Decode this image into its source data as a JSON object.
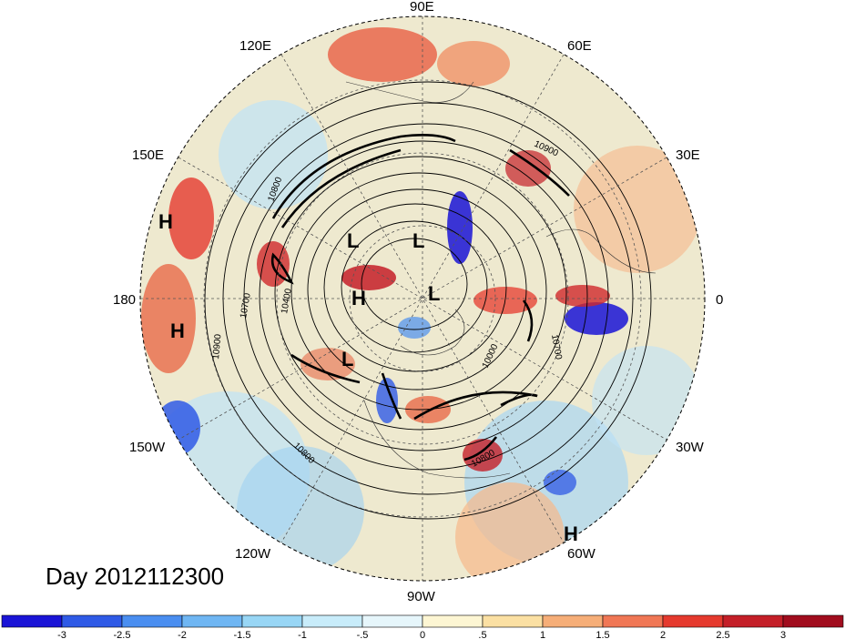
{
  "title": "Day 2012112300",
  "longitude_labels": [
    "90E",
    "60E",
    "30E",
    "0",
    "30W",
    "60W",
    "90W",
    "120W",
    "150W",
    "180",
    "150E",
    "120E"
  ],
  "contour_labels": [
    "10800",
    "10900",
    "10700",
    "10400",
    "10900",
    "10700",
    "10000",
    "10800",
    "10800"
  ],
  "pressure_centers": [
    "H",
    "H",
    "L",
    "L",
    "H",
    "L",
    "L",
    "H"
  ],
  "colorbar": {
    "tick_labels": [
      "-3",
      "-2.5",
      "-2",
      "-1.5",
      "-1",
      "-.5",
      "0",
      ".5",
      "1",
      "1.5",
      "2",
      "2.5",
      "3"
    ],
    "colors": [
      "#1a14d6",
      "#2f5ae6",
      "#4a8ef0",
      "#6fb6f3",
      "#98d6f5",
      "#c8ecfa",
      "#e6f6fb",
      "#fdf6d3",
      "#fbe0a3",
      "#f6ae78",
      "#f07755",
      "#e53a2e",
      "#c41f28",
      "#a10d1e"
    ]
  }
}
